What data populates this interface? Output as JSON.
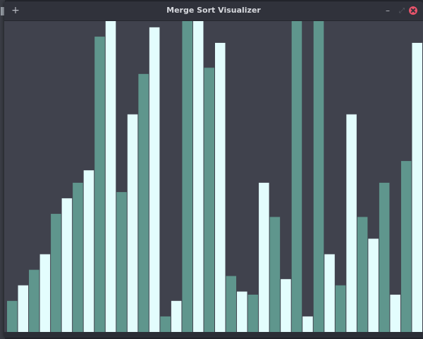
{
  "window": {
    "title": "Merge Sort Visualizer",
    "pin_icon": "+",
    "minimize_icon": "–",
    "maximize_icon": "⤢"
  },
  "colors": {
    "canvas_bg": "#40424d",
    "bar_teal": "#5f968d",
    "bar_light": "#e3fdfd"
  },
  "chart_data": {
    "type": "bar",
    "ylim": [
      0,
      100
    ],
    "values": [
      10,
      15,
      20,
      25,
      38,
      43,
      48,
      52,
      95,
      100,
      45,
      70,
      83,
      98,
      5,
      10,
      100,
      100,
      85,
      93,
      18,
      13,
      12,
      48,
      37,
      17,
      100,
      5,
      100,
      25,
      15,
      70,
      37,
      30,
      48,
      12,
      55,
      93
    ],
    "bar_colors": [
      "teal",
      "light",
      "teal",
      "light",
      "teal",
      "light",
      "teal",
      "light",
      "teal",
      "light",
      "teal",
      "light",
      "teal",
      "light",
      "teal",
      "light",
      "teal",
      "light",
      "teal",
      "light",
      "teal",
      "light",
      "teal",
      "light",
      "teal",
      "light",
      "teal",
      "light",
      "teal",
      "light",
      "teal",
      "light",
      "teal",
      "light",
      "teal",
      "light",
      "teal",
      "light"
    ]
  }
}
